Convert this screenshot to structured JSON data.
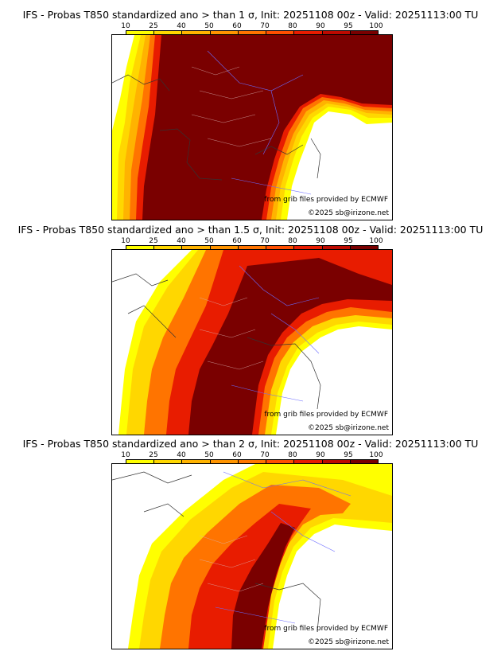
{
  "colorbar": {
    "labels": [
      "10",
      "25",
      "40",
      "50",
      "60",
      "70",
      "80",
      "90",
      "95",
      "100"
    ],
    "colors": [
      "#ffff00",
      "#ffd700",
      "#ffb300",
      "#ff9400",
      "#ff7400",
      "#ff4f00",
      "#e81c00",
      "#bd0a00",
      "#7a0000"
    ]
  },
  "panels": [
    {
      "title": "IFS - Probas T850  standardized ano > than 1 σ, Init: 20251108 00z - Valid: 20251113:00 TU",
      "credit_ecmwf": "from grib files provided by ECMWF",
      "credit_copy": "©2025 sb@irizone.net"
    },
    {
      "title": "IFS - Probas T850  standardized ano > than 1.5 σ, Init: 20251108 00z - Valid: 20251113:00 TU",
      "credit_ecmwf": "from grib files provided by ECMWF",
      "credit_copy": "©2025 sb@irizone.net"
    },
    {
      "title": "IFS - Probas T850  standardized ano > than 2 σ, Init: 20251108 00z - Valid: 20251113:00 TU",
      "credit_ecmwf": "from grib files provided by ECMWF",
      "credit_copy": "©2025 sb@irizone.net"
    }
  ]
}
